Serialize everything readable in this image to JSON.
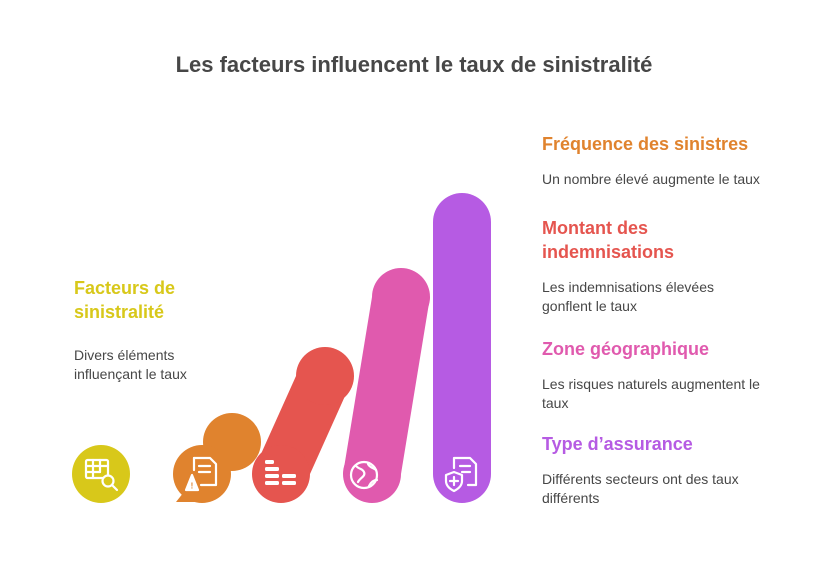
{
  "title": "Les facteurs influencent le taux de sinistralité",
  "root": {
    "heading": "Facteurs de sinistralité",
    "description": "Divers éléments influençant le taux",
    "color": "#D8C81A",
    "icon": "table-search-icon"
  },
  "factors": [
    {
      "heading": "Fréquence des sinistres",
      "description": "Un nombre élevé augmente le taux",
      "color": "#E0832E",
      "icon": "document-warning-icon"
    },
    {
      "heading": "Montant des indemnisations",
      "description": "Les indemnisations élevées gonflent le taux",
      "color": "#E5554F",
      "icon": "coin-stack-icon"
    },
    {
      "heading": "Zone géographique",
      "description": "Les risques naturels augmentent le taux",
      "color": "#E05AAE",
      "icon": "globe-icon"
    },
    {
      "heading": "Type d’assurance",
      "description": "Différents secteurs ont des taux différents",
      "color": "#B65BE3",
      "icon": "document-shield-icon"
    }
  ]
}
